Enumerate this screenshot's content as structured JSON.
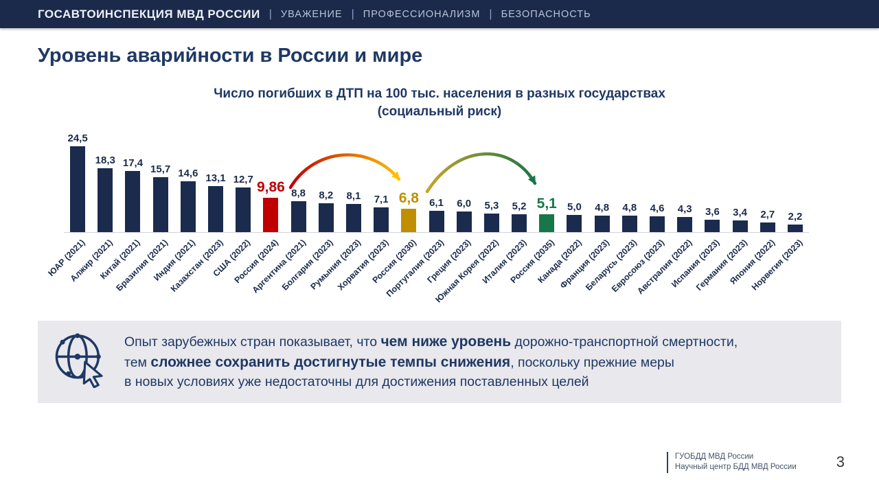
{
  "header": {
    "brand": "ГОСАВТОИНСПЕКЦИЯ МВД РОССИИ",
    "separator": "|",
    "values": [
      "УВАЖЕНИЕ",
      "ПРОФЕССИОНАЛИЗМ",
      "БЕЗОПАСНОСТЬ"
    ]
  },
  "page_title": "Уровень аварийности в России и мире",
  "chart_data": {
    "type": "bar",
    "title": "Число погибших в ДТП на 100 тыс. населения в разных государствах",
    "subtitle": "(социальный риск)",
    "xlabel": "",
    "ylabel": "",
    "ylim": [
      0,
      25
    ],
    "grid": false,
    "legend": "none",
    "bar_color": "#1b2b4d",
    "categories": [
      "ЮАР (2021)",
      "Алжир (2021)",
      "Китай (2021)",
      "Бразилия (2021)",
      "Индия (2021)",
      "Казахстан (2023)",
      "США (2022)",
      "Россия (2024)",
      "Аргентина (2021)",
      "Болгария (2023)",
      "Румыния (2023)",
      "Хорватия (2023)",
      "Россия (2030)",
      "Португалия (2023)",
      "Греция (2023)",
      "Южная Корея (2022)",
      "Италия (2023)",
      "Россия (2035)",
      "Канада (2022)",
      "Франция (2023)",
      "Беларусь (2023)",
      "Евросоюз (2023)",
      "Австралия (2022)",
      "Испания (2023)",
      "Германия (2023)",
      "Япония (2022)",
      "Норвегия (2023)"
    ],
    "values": [
      24.5,
      18.3,
      17.4,
      15.7,
      14.6,
      13.1,
      12.7,
      9.86,
      8.8,
      8.2,
      8.1,
      7.1,
      6.8,
      6.1,
      6.0,
      5.3,
      5.2,
      5.1,
      5.0,
      4.8,
      4.8,
      4.6,
      4.3,
      3.6,
      3.4,
      2.7,
      2.2
    ],
    "value_labels": [
      "24,5",
      "18,3",
      "17,4",
      "15,7",
      "14,6",
      "13,1",
      "12,7",
      "9,86",
      "8,8",
      "8,2",
      "8,1",
      "7,1",
      "6,8",
      "6,1",
      "6,0",
      "5,3",
      "5,2",
      "5,1",
      "5,0",
      "4,8",
      "4,8",
      "4,6",
      "4,3",
      "3,6",
      "3,4",
      "2,7",
      "2,2"
    ],
    "highlights": [
      {
        "index": 7,
        "color": "#c00000",
        "meaning": "Россия текущий уровень (2024)"
      },
      {
        "index": 12,
        "color": "#bf8f00",
        "meaning": "Россия цель 2030"
      },
      {
        "index": 17,
        "color": "#17774a",
        "meaning": "Россия цель 2035"
      }
    ],
    "arrows": [
      {
        "from_index": 7,
        "to_index": 12,
        "color_start": "#c00000",
        "color_end": "#ffc000",
        "head_color": "#ffc000"
      },
      {
        "from_index": 12,
        "to_index": 17,
        "color_start": "#c9a227",
        "color_end": "#17774a",
        "head_color": "#17774a"
      }
    ]
  },
  "note": {
    "icon": "globe-cursor-icon",
    "segments": [
      {
        "text": "Опыт зарубежных стран показывает, что ",
        "bold": false
      },
      {
        "text": "чем ниже уровень",
        "bold": true
      },
      {
        "text": " дорожно-транспортной смертности,\nтем ",
        "bold": false
      },
      {
        "text": "сложнее сохранить достигнутые темпы снижения",
        "bold": true
      },
      {
        "text": ", поскольку прежние меры\nв новых условиях уже недостаточны для достижения поставленных целей",
        "bold": false
      }
    ]
  },
  "footer": {
    "org_line1": "ГУОБДД МВД России",
    "org_line2": "Научный центр БДД МВД России",
    "page_number": "3"
  }
}
